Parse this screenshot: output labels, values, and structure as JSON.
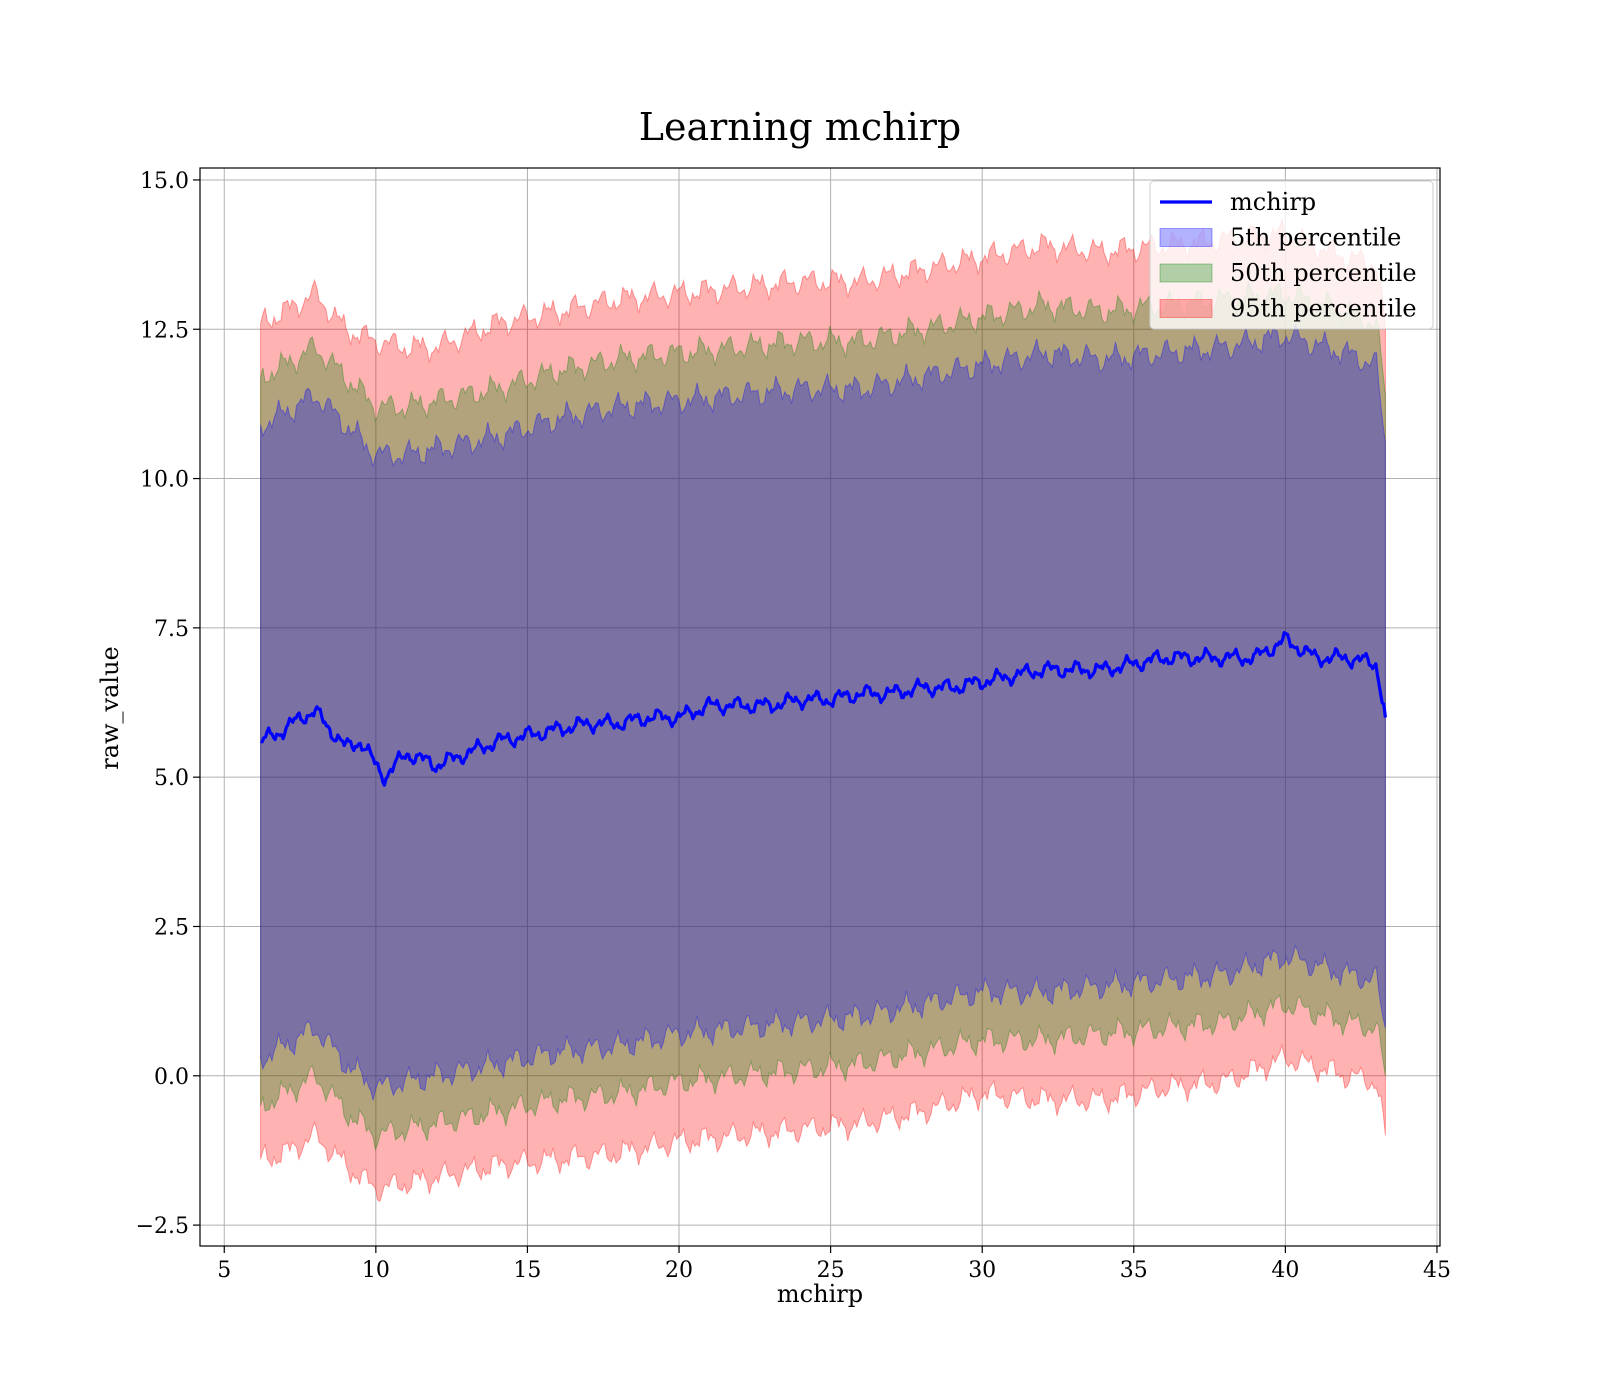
{
  "chart_data": {
    "type": "area",
    "title": "Learning mchirp",
    "xlabel": "mchirp",
    "ylabel": "raw_value",
    "xlim": [
      4.2,
      45.1
    ],
    "ylim": [
      -2.85,
      15.2
    ],
    "xticks": [
      5,
      10,
      15,
      20,
      25,
      30,
      35,
      40,
      45
    ],
    "xtick_labels": [
      "5",
      "10",
      "15",
      "20",
      "25",
      "30",
      "35",
      "40",
      "45"
    ],
    "yticks": [
      -2.5,
      0.0,
      2.5,
      5.0,
      7.5,
      10.0,
      12.5,
      15.0
    ],
    "ytick_labels": [
      "−2.5",
      "0.0",
      "2.5",
      "5.0",
      "7.5",
      "10.0",
      "12.5",
      "15.0"
    ],
    "grid": true,
    "legend_position": "upper-right",
    "line": {
      "name": "mchirp",
      "color": "#0000ff",
      "x": [
        6.2,
        7.0,
        7.5,
        8.0,
        8.5,
        9.0,
        9.5,
        10.0,
        10.3,
        11.0,
        12.0,
        13.0,
        14.0,
        15.0,
        16.0,
        17.0,
        18.0,
        19.0,
        20.0,
        21.0,
        22.0,
        23.0,
        24.0,
        25.0,
        26.0,
        27.0,
        28.0,
        29.0,
        30.0,
        31.0,
        32.0,
        33.0,
        34.0,
        35.0,
        36.0,
        37.0,
        38.0,
        39.0,
        40.0,
        41.0,
        42.0,
        43.0,
        43.3
      ],
      "y": [
        5.6,
        5.8,
        6.0,
        6.1,
        5.8,
        5.5,
        5.6,
        5.2,
        5.0,
        5.4,
        5.2,
        5.4,
        5.6,
        5.7,
        5.8,
        5.9,
        5.9,
        6.0,
        6.0,
        6.2,
        6.2,
        6.2,
        6.3,
        6.3,
        6.4,
        6.4,
        6.5,
        6.5,
        6.6,
        6.7,
        6.8,
        6.8,
        6.8,
        6.9,
        7.0,
        7.0,
        7.0,
        7.0,
        7.3,
        7.0,
        7.0,
        6.9,
        6.0
      ]
    },
    "bands": [
      {
        "name": "95th percentile",
        "color": "#ff0000",
        "opacity": 0.3,
        "x": [
          6.2,
          7.0,
          8.0,
          9.0,
          10.0,
          11.0,
          12.0,
          14.0,
          16.0,
          18.0,
          20.0,
          22.0,
          24.0,
          26.0,
          28.0,
          30.0,
          32.0,
          34.0,
          36.0,
          38.0,
          40.0,
          42.0,
          43.0,
          43.3
        ],
        "upper": [
          12.6,
          12.8,
          13.1,
          12.5,
          12.3,
          12.2,
          12.2,
          12.6,
          12.8,
          13.0,
          13.1,
          13.2,
          13.3,
          13.3,
          13.5,
          13.7,
          13.9,
          13.8,
          13.9,
          14.0,
          14.1,
          13.7,
          13.6,
          12.5
        ],
        "lower": [
          -1.4,
          -1.3,
          -1.0,
          -1.5,
          -1.9,
          -1.8,
          -1.7,
          -1.5,
          -1.4,
          -1.3,
          -1.1,
          -1.0,
          -0.9,
          -0.8,
          -0.6,
          -0.3,
          -0.4,
          -0.4,
          -0.2,
          -0.1,
          0.3,
          0.0,
          -0.1,
          -1.0
        ]
      },
      {
        "name": "50th percentile",
        "color": "#008000",
        "opacity": 0.3,
        "x": [
          6.2,
          7.0,
          8.0,
          9.0,
          10.0,
          11.0,
          12.0,
          14.0,
          16.0,
          18.0,
          20.0,
          22.0,
          24.0,
          26.0,
          28.0,
          30.0,
          32.0,
          34.0,
          36.0,
          38.0,
          40.0,
          42.0,
          43.0,
          43.3
        ],
        "upper": [
          11.7,
          11.9,
          12.2,
          11.7,
          11.2,
          11.2,
          11.3,
          11.5,
          11.8,
          12.0,
          12.1,
          12.2,
          12.3,
          12.3,
          12.5,
          12.7,
          12.9,
          12.8,
          12.9,
          13.0,
          13.1,
          12.8,
          12.6,
          11.4
        ],
        "lower": [
          -0.5,
          -0.3,
          0.0,
          -0.6,
          -1.0,
          -0.9,
          -0.8,
          -0.6,
          -0.4,
          -0.3,
          -0.1,
          0.0,
          0.1,
          0.2,
          0.4,
          0.6,
          0.6,
          0.7,
          0.8,
          0.9,
          1.2,
          0.9,
          0.8,
          0.0
        ]
      },
      {
        "name": "5th percentile",
        "color": "#0000ff",
        "opacity": 0.3,
        "x": [
          6.2,
          7.0,
          8.0,
          9.0,
          10.0,
          11.0,
          12.0,
          14.0,
          16.0,
          18.0,
          20.0,
          22.0,
          24.0,
          26.0,
          28.0,
          30.0,
          32.0,
          34.0,
          36.0,
          38.0,
          40.0,
          42.0,
          43.0,
          43.3
        ],
        "upper": [
          10.9,
          11.1,
          11.4,
          10.9,
          10.4,
          10.4,
          10.5,
          10.7,
          11.0,
          11.2,
          11.3,
          11.4,
          11.5,
          11.5,
          11.7,
          11.9,
          12.1,
          12.0,
          12.1,
          12.2,
          12.4,
          12.1,
          11.9,
          10.6
        ],
        "lower": [
          0.3,
          0.5,
          0.8,
          0.2,
          -0.2,
          -0.1,
          0.0,
          0.2,
          0.4,
          0.5,
          0.7,
          0.8,
          0.9,
          1.0,
          1.2,
          1.4,
          1.4,
          1.5,
          1.6,
          1.7,
          2.0,
          1.7,
          1.6,
          0.8
        ]
      }
    ],
    "legend": [
      {
        "label": "mchirp",
        "kind": "line",
        "color": "#0000ff"
      },
      {
        "label": "5th percentile",
        "kind": "patch",
        "color": "#0000ff"
      },
      {
        "label": "50th percentile",
        "kind": "patch",
        "color": "#008000"
      },
      {
        "label": "95th percentile",
        "kind": "patch",
        "color": "#ff0000"
      }
    ]
  }
}
